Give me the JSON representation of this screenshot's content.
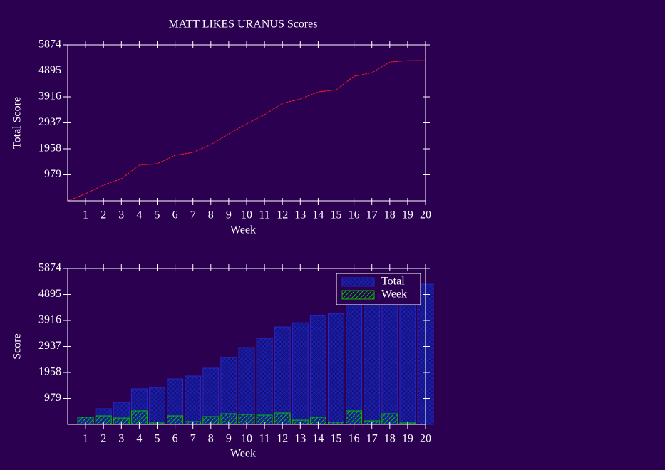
{
  "chart_data": [
    {
      "type": "line",
      "title": "MATT LIKES URANUS Scores",
      "xlabel": "Week",
      "ylabel": "Total Score",
      "x": [
        0,
        1,
        2,
        3,
        4,
        5,
        6,
        7,
        8,
        9,
        10,
        11,
        12,
        13,
        14,
        15,
        16,
        17,
        18,
        19,
        20
      ],
      "values": [
        0,
        268,
        590,
        830,
        1340,
        1394,
        1716,
        1823,
        2118,
        2520,
        2895,
        3243,
        3672,
        3832,
        4100,
        4180,
        4690,
        4824,
        5226,
        5280,
        5280
      ],
      "color": "#ff2020",
      "xlim": [
        0,
        20
      ],
      "xticks": [
        1,
        2,
        3,
        4,
        5,
        6,
        7,
        8,
        9,
        10,
        11,
        12,
        13,
        14,
        15,
        16,
        17,
        18,
        19,
        20
      ],
      "ylim": [
        0,
        5874
      ],
      "yticks": [
        979,
        1958,
        2937,
        3916,
        4895,
        5874
      ]
    },
    {
      "type": "bar",
      "xlabel": "Week",
      "ylabel": "Score",
      "x": [
        1,
        2,
        3,
        4,
        5,
        6,
        7,
        8,
        9,
        10,
        11,
        12,
        13,
        14,
        15,
        16,
        17,
        18,
        19,
        20
      ],
      "series": [
        {
          "name": "Total",
          "color": "#2828c8",
          "values": [
            268,
            590,
            830,
            1340,
            1394,
            1716,
            1823,
            2118,
            2520,
            2895,
            3243,
            3672,
            3832,
            4100,
            4180,
            4690,
            4824,
            5226,
            5280,
            5280
          ]
        },
        {
          "name": "Week",
          "color": "#00c000",
          "values": [
            268,
            322,
            240,
            510,
            54,
            322,
            107,
            295,
            402,
            375,
            348,
            429,
            160,
            268,
            80,
            510,
            134,
            402,
            54,
            0
          ]
        }
      ],
      "legend": "upper right",
      "xlim": [
        0,
        20
      ],
      "xticks": [
        1,
        2,
        3,
        4,
        5,
        6,
        7,
        8,
        9,
        10,
        11,
        12,
        13,
        14,
        15,
        16,
        17,
        18,
        19,
        20
      ],
      "ylim": [
        0,
        5874
      ],
      "yticks": [
        979,
        1958,
        2937,
        3916,
        4895,
        5874
      ]
    }
  ]
}
